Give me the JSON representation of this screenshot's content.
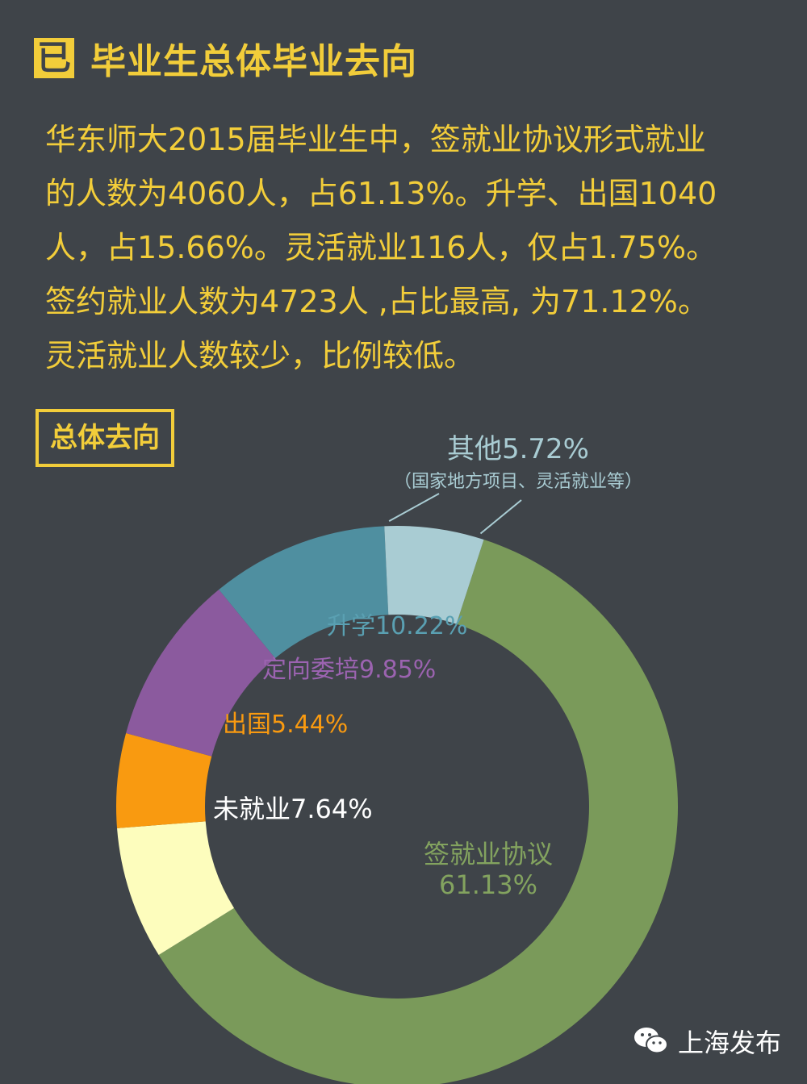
{
  "header": {
    "icon_glyph": "已",
    "title": "毕业生总体毕业去向"
  },
  "summary_lines": [
    "华东师大2015届毕业生中，签就业协议形式就业",
    "的人数为4060人，占61.13%。升学、出国1040",
    "人，占15.66%。灵活就业116人，仅占1.75%。",
    "签约就业人数为4723人 ,占比最高, 为71.12%。",
    "灵活就业人数较少，比例较低。"
  ],
  "section_badge": "总体去向",
  "credit": {
    "icon": "wechat-icon",
    "text": "上海发布"
  },
  "chart_data": {
    "type": "pie",
    "donut": true,
    "slices": [
      {
        "label": "签就业协议",
        "value": 61.13,
        "value_text": "61.13%",
        "color": "#7a9a5a",
        "label_color": "#83a35f"
      },
      {
        "label": "未就业",
        "value": 7.64,
        "value_text": "7.64%",
        "color": "#fdfdbd",
        "label_color": "#ffffff"
      },
      {
        "label": "出国",
        "value": 5.44,
        "value_text": "5.44%",
        "color": "#f99a10",
        "label_color": "#f99a10"
      },
      {
        "label": "定向委培",
        "value": 9.85,
        "value_text": "9.85%",
        "color": "#8b5a9e",
        "label_color": "#9b63b0"
      },
      {
        "label": "升学",
        "value": 10.22,
        "value_text": "10.22%",
        "color": "#4f8fa0",
        "label_color": "#5aa0b2"
      },
      {
        "label": "其他",
        "value": 5.72,
        "value_text": "5.72%",
        "color": "#a9ccd3",
        "label_color": "#a9ccd3",
        "note": "（国家地方项目、灵活就业等）"
      }
    ]
  }
}
